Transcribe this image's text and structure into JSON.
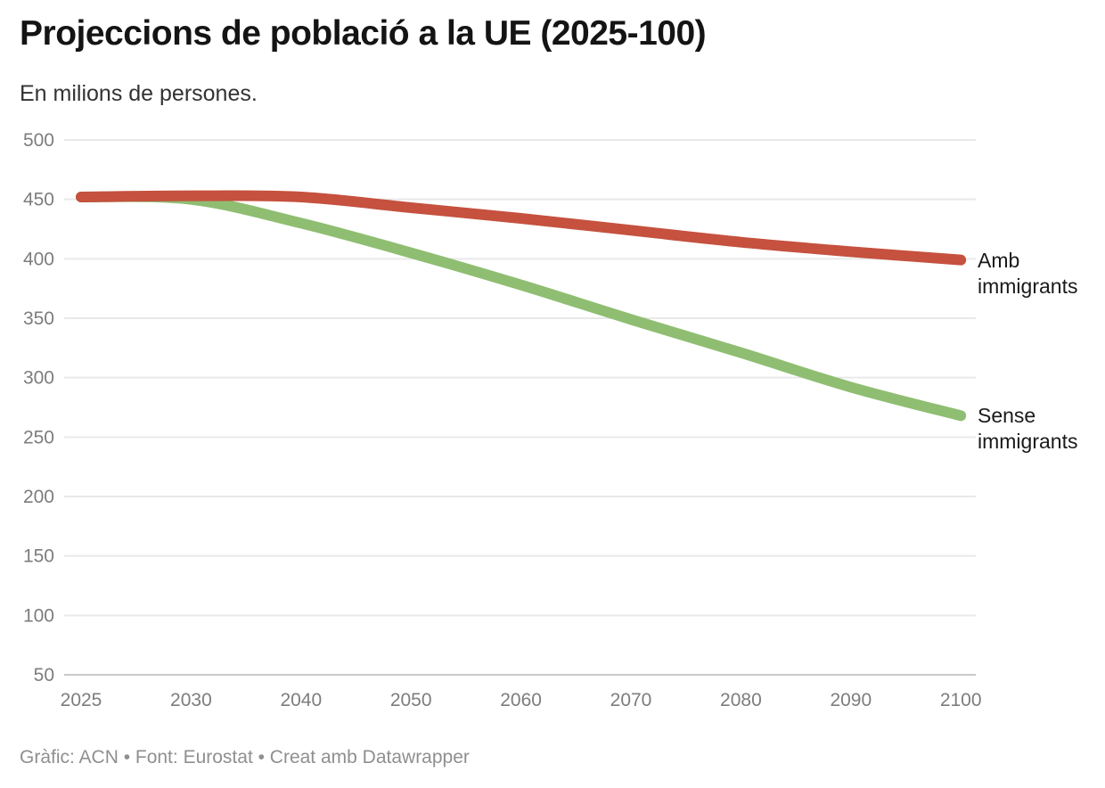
{
  "header": {
    "title": "Projeccions de població a la UE (2025-100)",
    "subtitle": "En milions de persones."
  },
  "footer": {
    "text": "Gràfic: ACN • Font: Eurostat • Creat amb Datawrapper"
  },
  "chart_data": {
    "type": "line",
    "title": "Projeccions de població a la UE (2025-100)",
    "subtitle": "En milions de persones.",
    "categories": [
      "2025",
      "2030",
      "2040",
      "2050",
      "2060",
      "2070",
      "2080",
      "2090",
      "2100"
    ],
    "series": [
      {
        "name": "Amb immigrants",
        "color": "#c5513e",
        "values": [
          452,
          453,
          452,
          443,
          434,
          424,
          414,
          406,
          399
        ]
      },
      {
        "name": "Sense immigrants",
        "color": "#8fbe72",
        "values": [
          452,
          450,
          430,
          405,
          378,
          349,
          321,
          292,
          268
        ]
      }
    ],
    "xlabel": "",
    "ylabel": "",
    "ylim": [
      50,
      500
    ],
    "yticks": [
      50,
      100,
      150,
      200,
      250,
      300,
      350,
      400,
      450,
      500
    ],
    "grid": "horizontal",
    "legend_position": "line-end-labels",
    "x_axis_note": "points evenly spaced: 5-year gap 2025-2030, then 10-year gaps"
  },
  "colors": {
    "axis_text": "#7d7d7d",
    "grid": "#e9e9e9",
    "baseline": "#c9c9c9",
    "text": "#1a1a1a",
    "muted": "#8f8f8f"
  }
}
